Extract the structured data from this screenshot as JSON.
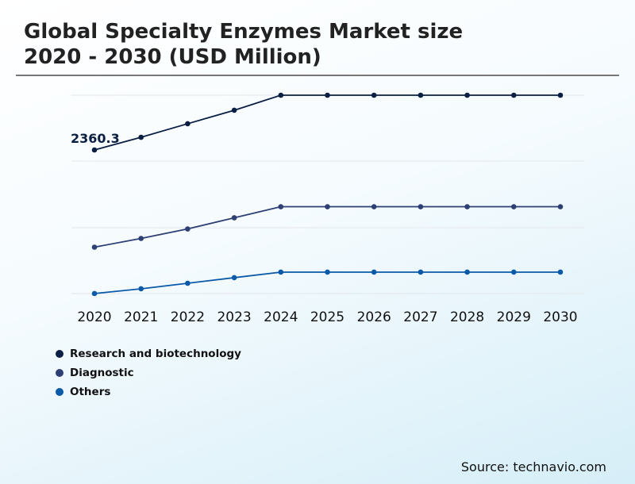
{
  "header": {
    "title_line1": "Global Specialty Enzymes Market size",
    "title_line2": "2020 - 2030 (USD Million)"
  },
  "source": "Source: technavio.com",
  "chart_data": {
    "type": "line",
    "title": "Global Specialty Enzymes Market size 2020 - 2030 (USD Million)",
    "categories": [
      "2020",
      "2021",
      "2022",
      "2023",
      "2024",
      "2025",
      "2026",
      "2027",
      "2028",
      "2029",
      "2030"
    ],
    "series": [
      {
        "name": "Research and biotechnology",
        "color": "#0b1f45",
        "values": [
          2360.3,
          2539,
          2730,
          2920,
          3132,
          3132,
          3132,
          3132,
          3132,
          3132,
          3132
        ]
      },
      {
        "name": "Diagnostic",
        "color": "#2e3f74",
        "values": [
          990,
          1113,
          1247,
          1404,
          1560,
          1560,
          1560,
          1560,
          1560,
          1560,
          1560
        ]
      },
      {
        "name": "Others",
        "color": "#0a5aa8",
        "values": [
          336,
          403,
          481,
          560,
          638,
          638,
          638,
          638,
          638,
          638,
          638
        ]
      }
    ],
    "data_labels": [
      {
        "series": 0,
        "index": 0,
        "text": "2360.3"
      }
    ],
    "ylim": [
      0,
      3132
    ],
    "grid": true,
    "y_axis_labels_shown": false,
    "legend_position": "bottom-left"
  }
}
